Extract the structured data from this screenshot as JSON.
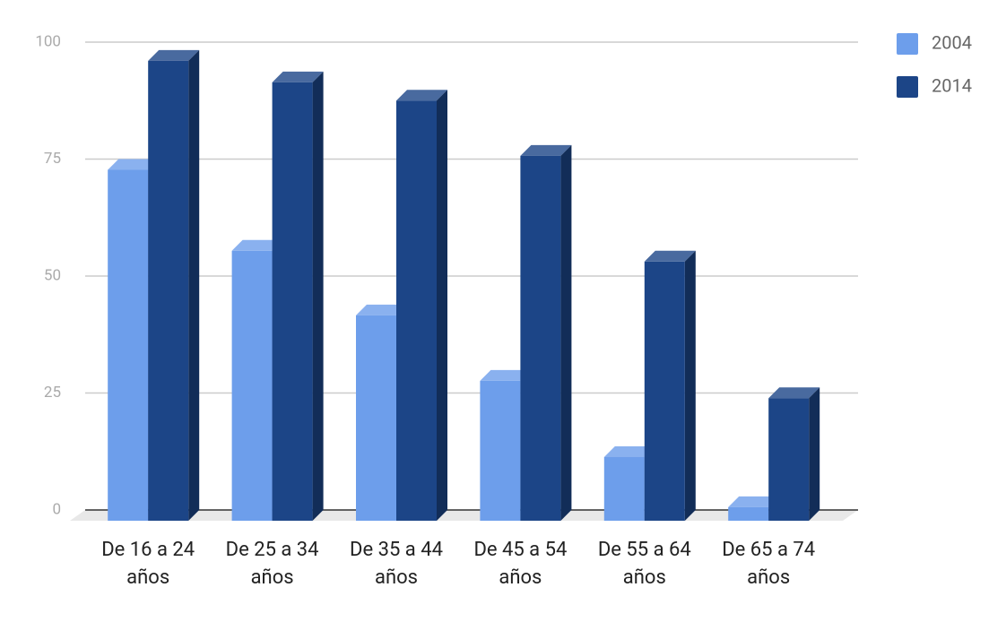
{
  "chart_data": {
    "type": "bar3d",
    "categories": [
      "De 16 a 24 años",
      "De 25 a 34 años",
      "De 35 a 44 años",
      "De 45 a 54 años",
      "De 55 a 64 años",
      "De 65 a 74 años"
    ],
    "series": [
      {
        "name": "2004",
        "color": "#6d9eeb",
        "values": [
          75,
          57.7,
          43.9,
          29.9,
          13.6,
          2.9
        ]
      },
      {
        "name": "2014",
        "color": "#1c4587",
        "values": [
          98.3,
          93.7,
          89.8,
          78,
          55.4,
          26.2
        ]
      }
    ],
    "ylim": [
      0,
      100
    ],
    "yticks": [
      0,
      25,
      50,
      75,
      100
    ],
    "grid": true,
    "legend": "top-right"
  }
}
